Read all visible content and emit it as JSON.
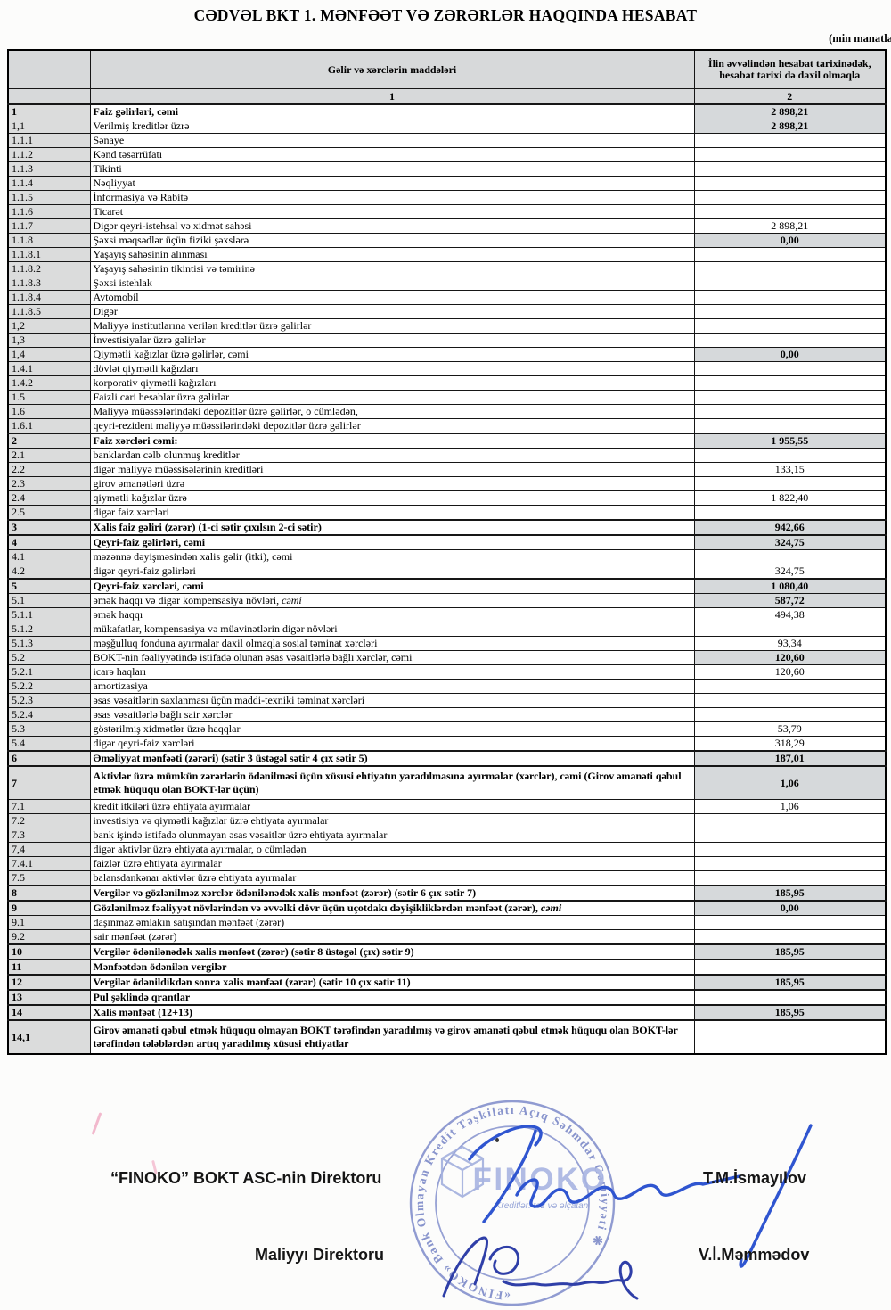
{
  "page": {
    "title": "CƏDVƏL BKT 1. MƏNFƏƏT VƏ ZƏRƏRLƏR HAQQINDA HESABAT",
    "unit_note": "(min manatla"
  },
  "table": {
    "col1_header": "Gəlir və xərclərin maddələri",
    "col2_header": "İlin əvvəlindən hesabat tarixinədək, hesabat tarixi də daxil olmaqla",
    "col1_number": "1",
    "col2_number": "2",
    "rows": [
      {
        "no": "1",
        "label": "Faiz gəlirləri, cəmi",
        "value": "2 898,21",
        "bold": true,
        "shaded": true,
        "thick": true
      },
      {
        "no": "1,1",
        "label": "Verilmiş kreditlər üzrə",
        "value": "2 898,21",
        "shaded": true
      },
      {
        "no": "1.1.1",
        "label": "Sənaye",
        "value": ""
      },
      {
        "no": "1.1.2",
        "label": "Kənd təsərrüfatı",
        "value": ""
      },
      {
        "no": "1.1.3",
        "label": "Tikinti",
        "value": ""
      },
      {
        "no": "1.1.4",
        "label": "Nəqliyyat",
        "value": ""
      },
      {
        "no": "1.1.5",
        "label": "İnformasiya və Rabitə",
        "value": ""
      },
      {
        "no": "1.1.6",
        "label": "Ticarət",
        "value": ""
      },
      {
        "no": "1.1.7",
        "label": "Digər qeyri-istehsal və xidmət sahəsi",
        "value": "2 898,21"
      },
      {
        "no": "1.1.8",
        "label": "Şəxsi məqsədlər üçün fiziki şəxslərə",
        "value": "0,00",
        "shaded": true
      },
      {
        "no": "1.1.8.1",
        "label": "Yaşayış sahəsinin alınması",
        "value": ""
      },
      {
        "no": "1.1.8.2",
        "label": "Yaşayış sahəsinin tikintisi və təmirinə",
        "value": ""
      },
      {
        "no": "1.1.8.3",
        "label": "Şəxsi istehlak",
        "value": ""
      },
      {
        "no": "1.1.8.4",
        "label": "Avtomobil",
        "value": ""
      },
      {
        "no": "1.1.8.5",
        "label": "Digər",
        "value": ""
      },
      {
        "no": "1,2",
        "label": "Maliyyə institutlarına verilən kreditlər üzrə gəlirlər",
        "value": ""
      },
      {
        "no": "1,3",
        "label": "İnvestisiyalar üzrə gəlirlər",
        "value": ""
      },
      {
        "no": "1,4",
        "label": "Qiymətli kağızlar üzrə gəlirlər, cəmi",
        "value": "0,00",
        "shaded": true
      },
      {
        "no": "1.4.1",
        "label": "dövlət qiymətli kağızları",
        "value": ""
      },
      {
        "no": "1.4.2",
        "label": "korporativ qiymətli kağızları",
        "value": ""
      },
      {
        "no": "1.5",
        "label": "Faizli cari hesablar üzrə gəlirlər",
        "value": ""
      },
      {
        "no": "1.6",
        "label": "Maliyyə müəssələrindəki depozitlər üzrə gəlirlər, o cümlədən,",
        "value": ""
      },
      {
        "no": "1.6.1",
        "label": "qeyri-rezident maliyyə müəssilərindəki depozitlər üzrə gəlirlər",
        "value": ""
      },
      {
        "no": "2",
        "label": "Faiz xərcləri cəmi:",
        "value": "1 955,55",
        "bold": true,
        "shaded": true,
        "thick": true
      },
      {
        "no": "2.1",
        "label": "banklardan cəlb olunmuş kreditlər",
        "value": ""
      },
      {
        "no": "2.2",
        "label": "digər maliyyə müəssisələrinin kreditləri",
        "value": "133,15"
      },
      {
        "no": "2.3",
        "label": "girov əmanətləri üzrə",
        "value": ""
      },
      {
        "no": "2.4",
        "label": "qiymətli kağızlar üzrə",
        "value": "1 822,40"
      },
      {
        "no": "2.5",
        "label": "digər faiz xərcləri",
        "value": ""
      },
      {
        "no": "3",
        "label": "Xalis faiz gəliri (zərər) (1-ci sətir çıxılsın 2-ci sətir)",
        "value": "942,66",
        "bold": true,
        "shaded": true,
        "thick": true
      },
      {
        "no": "4",
        "label": "Qeyri-faiz gəlirləri, cəmi",
        "value": "324,75",
        "bold": true,
        "shaded": true,
        "thick": true
      },
      {
        "no": "4.1",
        "label": "məzənnə dəyişməsindən xalis gəlir (itki), cəmi",
        "value": ""
      },
      {
        "no": "4.2",
        "label": "digər qeyri-faiz gəlirləri",
        "value": "324,75"
      },
      {
        "no": "5",
        "label": "Qeyri-faiz xərcləri, cəmi",
        "value": "1 080,40",
        "bold": true,
        "shaded": true,
        "thick": true
      },
      {
        "no": "5.1",
        "label": "əmək haqqı və digər kompensasiya növləri, cəmi",
        "value": "587,72",
        "shaded": true,
        "it": true
      },
      {
        "no": "5.1.1",
        "label": "əmək haqqı",
        "value": "494,38"
      },
      {
        "no": "5.1.2",
        "label": "mükafatlar, kompensasiya və müavinətlərin digər növləri",
        "value": ""
      },
      {
        "no": "5.1.3",
        "label": "məşğulluq fonduna ayırmalar daxil olmaqla sosial təminat xərcləri",
        "value": "93,34"
      },
      {
        "no": "5.2",
        "label": "BOKT-nin fəaliyyətində istifadə olunan əsas vəsaitlərlə bağlı xərclər, cəmi",
        "value": "120,60",
        "shaded": true
      },
      {
        "no": "5.2.1",
        "label": "icarə haqları",
        "value": "120,60"
      },
      {
        "no": "5.2.2",
        "label": "amortizasiya",
        "value": ""
      },
      {
        "no": "5.2.3",
        "label": "əsas vəsaitlərin saxlanması üçün maddi-texniki təminat xərcləri",
        "value": ""
      },
      {
        "no": "5.2.4",
        "label": "əsas vəsaitlərlə bağlı sair xərclər",
        "value": ""
      },
      {
        "no": "5.3",
        "label": "göstərilmiş xidmətlər üzrə haqqlar",
        "value": "53,79"
      },
      {
        "no": "5.4",
        "label": "digər qeyri-faiz xərcləri",
        "value": "318,29"
      },
      {
        "no": "6",
        "label": "Əməliyyat mənfəəti (zərəri) (sətir 3 üstəgəl sətir 4 çıx sətir 5)",
        "value": "187,01",
        "bold": true,
        "shaded": true,
        "thick": true
      },
      {
        "no": "7",
        "label": "Aktivlər üzrə mümkün zərərlərin ödənilməsi üçün xüsusi ehtiyatın yaradılmasına ayırmalar (xərclər), cəmi (Girov əmanəti qəbul etmək hüququ olan BOKT-lər üçün)",
        "value": "1,06",
        "bold": true,
        "shaded": true,
        "thick": true,
        "tall": true
      },
      {
        "no": "7.1",
        "label": "kredit itkiləri üzrə ehtiyata ayırmalar",
        "value": "1,06"
      },
      {
        "no": "7.2",
        "label": "investisiya və qiymətli kağızlar üzrə ehtiyata ayırmalar",
        "value": ""
      },
      {
        "no": "7.3",
        "label": "bank işində istifadə olunmayan əsas vəsaitlər üzrə ehtiyata ayırmalar",
        "value": ""
      },
      {
        "no": "7,4",
        "label": "digər aktivlər üzrə ehtiyata ayırmalar, o cümlədən",
        "value": ""
      },
      {
        "no": "7.4.1",
        "label": "faizlər üzrə ehtiyata ayırmalar",
        "value": ""
      },
      {
        "no": "7.5",
        "label": "balansdankənar aktivlər üzrə ehtiyata ayırmalar",
        "value": ""
      },
      {
        "no": "8",
        "label": "Vergilər və gözlənilməz xərclər ödənilənədək xalis mənfəət (zərər) (sətir 6 çıx sətir 7)",
        "value": "185,95",
        "bold": true,
        "shaded": true,
        "thick": true
      },
      {
        "no": "9",
        "label": "Gözlənilməz fəaliyyət növlərindən və əvvəlki dövr üçün uçotdakı dəyişikliklərdən mənfəət (zərər), cəmi",
        "value": "0,00",
        "bold": true,
        "shaded": true,
        "thick": true,
        "it": true
      },
      {
        "no": "9.1",
        "label": "daşınmaz əmlakın satışından mənfəət (zərər)",
        "value": ""
      },
      {
        "no": "9.2",
        "label": "sair mənfəət (zərər)",
        "value": ""
      },
      {
        "no": "10",
        "label": "Vergilər ödənilənədək xalis mənfəət (zərər) (sətir 8 üstəgəl (çıx) sətir 9)",
        "value": "185,95",
        "bold": true,
        "shaded": true,
        "thick": true
      },
      {
        "no": "11",
        "label": "Mənfəətdən ödənilən vergilər",
        "value": "",
        "bold": true,
        "thick": true
      },
      {
        "no": "12",
        "label": "Vergilər ödənildikdən sonra xalis mənfəət (zərər) (sətir 10 çıx sətir 11)",
        "value": "185,95",
        "bold": true,
        "shaded": true,
        "thick": true
      },
      {
        "no": "13",
        "label": "Pul şəklində qrantlar",
        "value": "",
        "bold": true,
        "thick": true
      },
      {
        "no": "14",
        "label": "Xalis mənfəət  (12+13)",
        "value": "185,95",
        "bold": true,
        "shaded": true,
        "thick": true
      },
      {
        "no": "14,1",
        "label": "Girov əmanəti qəbul etmək hüququ olmayan BOKT tərəfindən yaradılmış və girov əmanəti qəbul etmək hüququ olan BOKT-lər tərəfindən tələblərdən artıq yaradılmış xüsusi ehtiyatlar",
        "value": "",
        "bold": true,
        "thick": true,
        "tall": true
      }
    ]
  },
  "footer": {
    "director_label": "“FINOKO” BOKT ASC-nin Direktoru",
    "director_name": "T.M.İsmayılov",
    "finance_label": "Maliyyı Direktoru",
    "finance_name": "V.İ.Məmmədov"
  },
  "stamp": {
    "ring_text": "«FINOKO» Bank Olmayan Kredit Təşkilatı Açıq Səhmdar Cəmiyyəti ❋",
    "logo_text": "FINOKO",
    "tagline": "Kreditlər: tez və əlçatan"
  },
  "colors": {
    "shade": "#d6d9db",
    "stamp_blue": "#8490cc",
    "director_signature_blue": "#2f55d0",
    "finance_signature_blue": "#2f3fa8"
  }
}
